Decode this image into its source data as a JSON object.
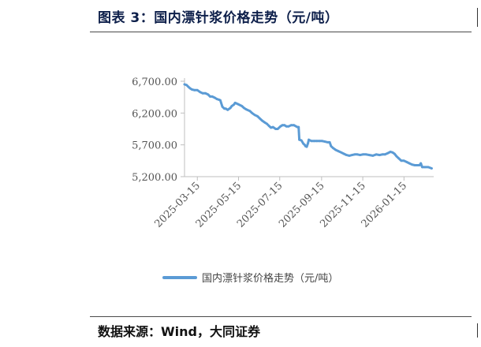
{
  "figure": {
    "title": "图表 3：国内漂针浆价格走势（元/吨）",
    "source": "数据来源：Wind，大同证券"
  },
  "colors": {
    "series": "#5b9bd5",
    "axis": "#bfbfbf",
    "text": "#555555"
  },
  "chart_data": {
    "type": "line",
    "title": "",
    "xlabel": "",
    "ylabel": "",
    "x_type": "date",
    "xlim": [
      "2025-02-24",
      "2026-02-28"
    ],
    "ylim": [
      5200,
      6700
    ],
    "y_ticks": [
      5200,
      5700,
      6200,
      6700
    ],
    "y_tick_labels": [
      "5,200.00",
      "5,700.00",
      "6,200.00",
      "6,700.00"
    ],
    "x_ticks": [
      "2025-03-15",
      "2025-05-15",
      "2025-07-15",
      "2025-09-15",
      "2025-11-15",
      "2026-01-15"
    ],
    "grid": false,
    "legend": "bottom",
    "series": [
      {
        "name": "国内漂针浆价格走势（元/吨）",
        "x": [
          "2025-02-24",
          "2025-02-27",
          "2025-03-01",
          "2025-03-04",
          "2025-03-07",
          "2025-03-11",
          "2025-03-15",
          "2025-03-19",
          "2025-03-23",
          "2025-03-27",
          "2025-03-31",
          "2025-04-03",
          "2025-04-06",
          "2025-04-10",
          "2025-04-13",
          "2025-04-16",
          "2025-04-18",
          "2025-04-21",
          "2025-04-24",
          "2025-04-26",
          "2025-04-29",
          "2025-05-03",
          "2025-05-05",
          "2025-05-08",
          "2025-05-10",
          "2025-05-14",
          "2025-05-20",
          "2025-05-23",
          "2025-05-26",
          "2025-05-28",
          "2025-06-01",
          "2025-06-04",
          "2025-06-08",
          "2025-06-12",
          "2025-06-16",
          "2025-06-19",
          "2025-06-23",
          "2025-06-26",
          "2025-06-29",
          "2025-07-02",
          "2025-07-05",
          "2025-07-09",
          "2025-07-12",
          "2025-07-16",
          "2025-07-19",
          "2025-07-22",
          "2025-07-25",
          "2025-07-28",
          "2025-08-01",
          "2025-08-05",
          "2025-08-10",
          "2025-08-12",
          "2025-08-13",
          "2025-08-16",
          "2025-08-19",
          "2025-08-21",
          "2025-08-22",
          "2025-08-24",
          "2025-08-26",
          "2025-08-27",
          "2025-08-31",
          "2025-09-04",
          "2025-09-08",
          "2025-09-12",
          "2025-09-16",
          "2025-09-20",
          "2025-09-24",
          "2025-09-27",
          "2025-09-29",
          "2025-10-02",
          "2025-10-06",
          "2025-10-10",
          "2025-10-14",
          "2025-10-18",
          "2025-10-22",
          "2025-10-26",
          "2025-10-30",
          "2025-11-03",
          "2025-11-07",
          "2025-11-11",
          "2025-11-15",
          "2025-11-20",
          "2025-11-25",
          "2025-11-30",
          "2025-12-05",
          "2025-12-10",
          "2025-12-14",
          "2025-12-18",
          "2025-12-22",
          "2025-12-26",
          "2025-12-29",
          "2026-01-01",
          "2026-01-04",
          "2026-01-07",
          "2026-01-11",
          "2026-01-15",
          "2026-01-19",
          "2026-01-23",
          "2026-01-27",
          "2026-01-31",
          "2026-02-03",
          "2026-02-05",
          "2026-02-07",
          "2026-02-09",
          "2026-02-11",
          "2026-02-15",
          "2026-02-20",
          "2026-02-25"
        ],
        "values": [
          6650,
          6640,
          6620,
          6590,
          6570,
          6560,
          6560,
          6530,
          6510,
          6510,
          6490,
          6460,
          6460,
          6440,
          6420,
          6410,
          6400,
          6300,
          6270,
          6270,
          6250,
          6280,
          6310,
          6330,
          6360,
          6340,
          6310,
          6280,
          6260,
          6250,
          6230,
          6200,
          6170,
          6150,
          6110,
          6080,
          6050,
          6030,
          6000,
          5970,
          5980,
          5950,
          5950,
          5990,
          6010,
          6010,
          5990,
          5990,
          6010,
          6010,
          5980,
          5980,
          5780,
          5770,
          5720,
          5700,
          5680,
          5670,
          5730,
          5780,
          5760,
          5760,
          5760,
          5760,
          5760,
          5750,
          5740,
          5740,
          5680,
          5650,
          5620,
          5600,
          5580,
          5560,
          5540,
          5530,
          5540,
          5550,
          5550,
          5540,
          5550,
          5550,
          5540,
          5530,
          5550,
          5540,
          5550,
          5550,
          5570,
          5590,
          5580,
          5560,
          5520,
          5490,
          5450,
          5450,
          5430,
          5410,
          5390,
          5380,
          5380,
          5380,
          5380,
          5410,
          5350,
          5350,
          5350,
          5330
        ]
      }
    ]
  }
}
